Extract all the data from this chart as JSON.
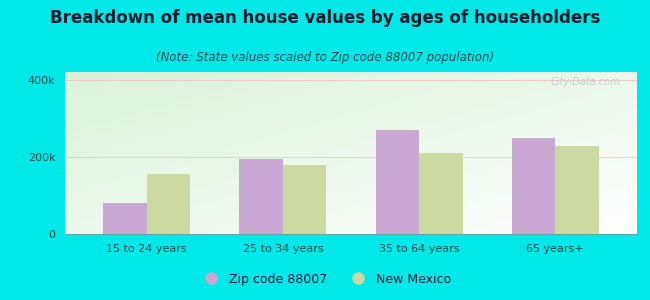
{
  "title": "Breakdown of mean house values by ages of householders",
  "subtitle": "(Note: State values scaled to Zip code 88007 population)",
  "categories": [
    "15 to 24 years",
    "25 to 34 years",
    "35 to 64 years",
    "65 years+"
  ],
  "zip_values": [
    80000,
    195000,
    270000,
    250000
  ],
  "nm_values": [
    155000,
    178000,
    210000,
    228000
  ],
  "zip_color": "#c9a8d4",
  "nm_color": "#ccd9a0",
  "background_color": "#00e8e8",
  "title_color": "#1a1a2e",
  "subtitle_color": "#2a4a4a",
  "tick_color": "#2a4a4a",
  "ylim": [
    0,
    420000
  ],
  "ytick_labels": [
    "0",
    "200k",
    "400k"
  ],
  "ytick_values": [
    0,
    200000,
    400000
  ],
  "legend_zip_label": "Zip code 88007",
  "legend_nm_label": "New Mexico",
  "bar_width": 0.32,
  "title_fontsize": 12,
  "subtitle_fontsize": 8.5,
  "watermark": "City-Data.com"
}
